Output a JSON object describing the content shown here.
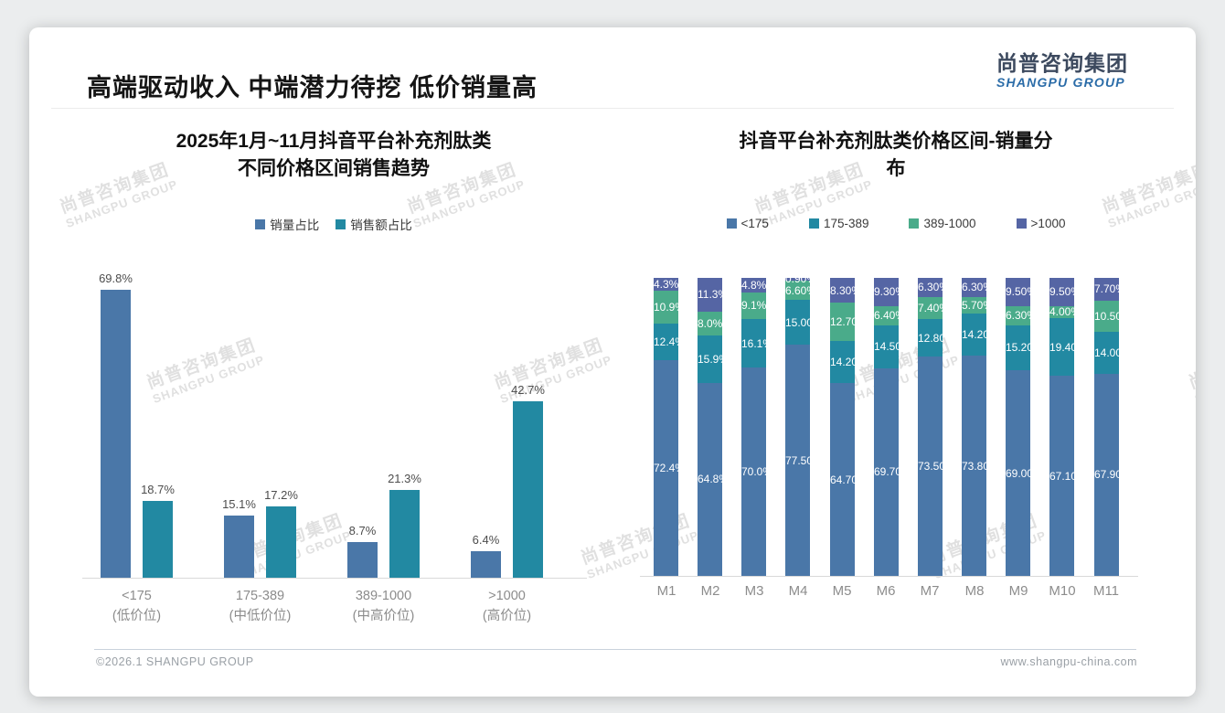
{
  "slide": {
    "header_title": "高端驱动收入 中端潜力待挖 低价销量高",
    "logo": {
      "cn": "尚普咨询集团",
      "en": "SHANGPU GROUP"
    },
    "watermark": {
      "cn": "尚普咨询集团",
      "en": "SHANGPU GROUP"
    },
    "footer": {
      "left": "©2026.1 SHANGPU GROUP",
      "right": "www.shangpu-china.com"
    }
  },
  "colors": {
    "blue": "#4A77A8",
    "teal": "#2289A2",
    "green": "#4AAB8A",
    "navy": "#5565A4",
    "axis": "#d9d9d9"
  },
  "chart_data": [
    {
      "type": "bar",
      "title": "2025年1月~11月抖音平台补充剂肽类\n不同价格区间销售趋势",
      "categories": [
        "<175",
        "175-389",
        "389-1000",
        ">1000"
      ],
      "category_sublabels": [
        "(低价位)",
        "(中低价位)",
        "(中高价位)",
        "(高价位)"
      ],
      "series": [
        {
          "name": "销量占比",
          "color": "blue",
          "values": [
            69.8,
            15.1,
            8.7,
            6.4
          ]
        },
        {
          "name": "销售额占比",
          "color": "teal",
          "values": [
            18.7,
            17.2,
            21.3,
            42.7
          ]
        }
      ],
      "unit": "%",
      "ylim": [
        0,
        75
      ],
      "grid": false,
      "legend_position": "top",
      "value_labels": "outside-top",
      "label_decimals": 1
    },
    {
      "type": "bar",
      "stacked": true,
      "percent_stacked": true,
      "title": "抖音平台补充剂肽类价格区间-销量分\n布",
      "categories": [
        "M1",
        "M2",
        "M3",
        "M4",
        "M5",
        "M6",
        "M7",
        "M8",
        "M9",
        "M10",
        "M11"
      ],
      "series": [
        {
          "name": "<175",
          "color": "blue",
          "values": [
            72.4,
            64.8,
            70.0,
            77.5,
            64.7,
            69.7,
            73.5,
            73.8,
            69.0,
            67.1,
            67.9
          ]
        },
        {
          "name": "175-389",
          "color": "teal",
          "values": [
            12.4,
            15.9,
            16.1,
            15.0,
            14.2,
            14.5,
            12.8,
            14.2,
            15.2,
            19.4,
            14.0
          ]
        },
        {
          "name": "389-1000",
          "color": "green",
          "values": [
            10.9,
            8.0,
            9.1,
            6.6,
            12.7,
            6.4,
            7.4,
            5.7,
            6.3,
            4.0,
            10.5
          ]
        },
        {
          "name": ">1000",
          "color": "navy",
          "values": [
            4.3,
            11.3,
            4.8,
            0.9,
            8.3,
            9.3,
            6.3,
            6.3,
            9.5,
            9.5,
            7.7
          ]
        }
      ],
      "unit": "%",
      "ylim": [
        0,
        100
      ],
      "grid": false,
      "legend_position": "top",
      "value_labels": "inside",
      "label_decimals_per_category": [
        1,
        1,
        1,
        2,
        2,
        2,
        2,
        2,
        2,
        2,
        2
      ]
    }
  ]
}
